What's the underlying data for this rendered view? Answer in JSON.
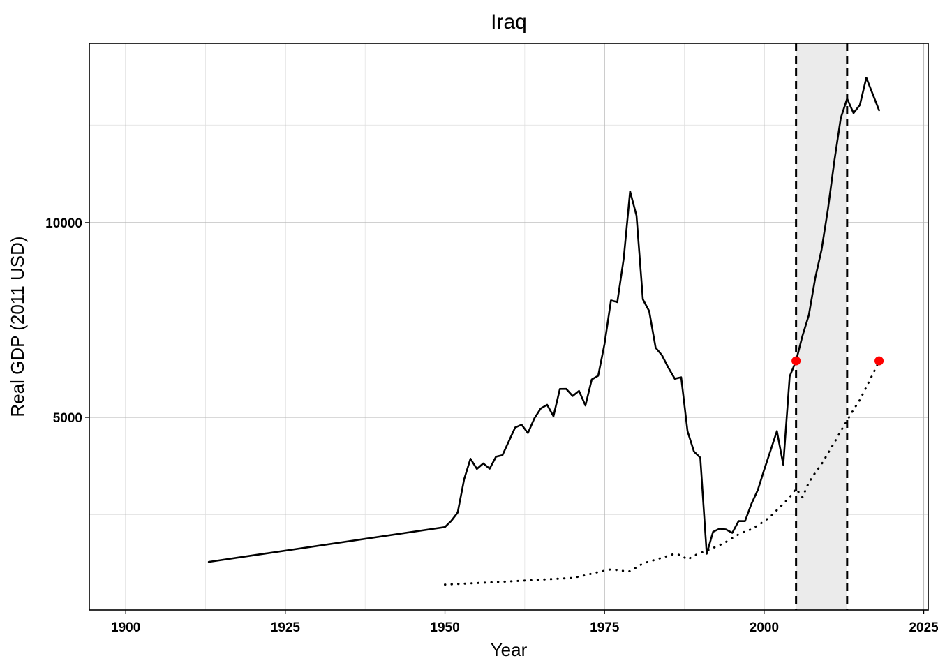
{
  "chart_data": {
    "type": "line",
    "title": "Iraq",
    "xlabel": "Year",
    "ylabel": "Real GDP (2011 USD)",
    "xlim": [
      1894.3,
      2025.7
    ],
    "ylim": [
      58,
      14600
    ],
    "x_ticks": [
      1900,
      1925,
      1950,
      1975,
      2000,
      2025
    ],
    "x_tick_labels": [
      "1900",
      "1925",
      "1950",
      "1975",
      "2000",
      "2025"
    ],
    "y_ticks": [
      5000,
      10000
    ],
    "y_tick_labels": [
      "5000",
      "10000"
    ],
    "grid": true,
    "legend": "none",
    "shaded_interval": {
      "x": [
        2005,
        2013
      ],
      "color": "#ebebeb"
    },
    "vertical_lines": [
      {
        "x": 2005,
        "style": "dashed",
        "color": "#000000"
      },
      {
        "x": 2013,
        "style": "dashed",
        "color": "#000000"
      }
    ],
    "series": [
      {
        "style": "solid",
        "color": "#000000",
        "x": [
          1913,
          1950,
          1951,
          1952,
          1953,
          1954,
          1955,
          1956,
          1957,
          1958,
          1959,
          1960,
          1961,
          1962,
          1963,
          1964,
          1965,
          1966,
          1967,
          1968,
          1969,
          1970,
          1971,
          1972,
          1973,
          1974,
          1975,
          1976,
          1977,
          1978,
          1979,
          1980,
          1981,
          1982,
          1983,
          1984,
          1985,
          1986,
          1987,
          1988,
          1989,
          1990,
          1991,
          1992,
          1993,
          1994,
          1995,
          1996,
          1997,
          1998,
          1999,
          2000,
          2001,
          2002,
          2003,
          2004,
          2005,
          2006,
          2007,
          2008,
          2009,
          2010,
          2011,
          2012,
          2013,
          2014,
          2015,
          2016,
          2017,
          2018
        ],
        "y": [
          1292,
          2186,
          2346,
          2559,
          3411,
          3939,
          3677,
          3818,
          3684,
          3990,
          4031,
          4385,
          4740,
          4812,
          4598,
          4972,
          5226,
          5323,
          5029,
          5729,
          5731,
          5548,
          5679,
          5305,
          5974,
          6068,
          6887,
          8002,
          7958,
          9081,
          10800,
          10175,
          8029,
          7725,
          6788,
          6593,
          6273,
          5992,
          6029,
          4645,
          4125,
          3966,
          1500,
          2063,
          2145,
          2127,
          2037,
          2340,
          2337,
          2777,
          3137,
          3653,
          4150,
          4650,
          3784,
          6054,
          6450,
          7091,
          7623,
          8574,
          9305,
          10352,
          11580,
          12680,
          13180,
          12808,
          13019,
          13715,
          13300,
          12880
        ]
      },
      {
        "style": "dotted",
        "color": "#000000",
        "x": [
          1950,
          1955,
          1960,
          1965,
          1970,
          1972,
          1974,
          1976,
          1978,
          1979,
          1980,
          1981,
          1982,
          1983,
          1984,
          1985,
          1986,
          1987,
          1988,
          1989,
          1990,
          1991,
          1992,
          1993,
          1994,
          1995,
          1996,
          1997,
          1998,
          1999,
          2000,
          2001,
          2002,
          2003,
          2004,
          2005,
          2006,
          2007,
          2008,
          2009,
          2010,
          2011,
          2012,
          2013,
          2014,
          2015,
          2016,
          2017,
          2018
        ],
        "y": [
          710,
          750,
          790,
          835,
          880,
          950,
          1030,
          1100,
          1060,
          1050,
          1150,
          1250,
          1300,
          1350,
          1400,
          1450,
          1500,
          1460,
          1350,
          1450,
          1520,
          1580,
          1650,
          1720,
          1800,
          1900,
          2000,
          2070,
          2130,
          2230,
          2330,
          2460,
          2620,
          2780,
          2950,
          3170,
          2950,
          3330,
          3580,
          3800,
          4080,
          4350,
          4650,
          4920,
          5200,
          5450,
          5780,
          6100,
          6450
        ]
      }
    ],
    "highlight_points": [
      {
        "x": 2005,
        "y": 6450,
        "color": "#ff0000"
      },
      {
        "x": 2018,
        "y": 6450,
        "color": "#ff0000"
      }
    ]
  }
}
